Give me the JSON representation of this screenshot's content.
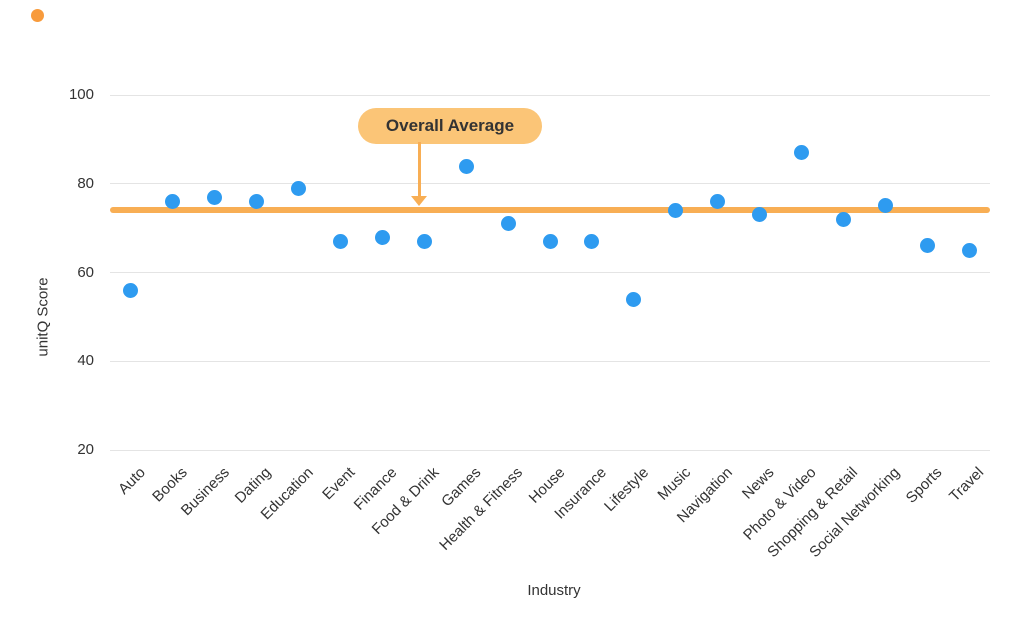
{
  "brand": {
    "dot_color": "#F89B3C"
  },
  "chart_data": {
    "type": "scatter",
    "title": "",
    "xlabel": "Industry",
    "ylabel": "unitQ Score",
    "categories": [
      "Auto",
      "Books",
      "Business",
      "Dating",
      "Education",
      "Event",
      "Finance",
      "Food & Drink",
      "Games",
      "Health & Fitness",
      "House",
      "Insurance",
      "Lifestyle",
      "Music",
      "Navigation",
      "News",
      "Photo & Video",
      "Shopping & Retail",
      "Social Networking",
      "Sports",
      "Travel"
    ],
    "values": [
      56,
      76,
      77,
      76,
      79,
      67,
      68,
      67,
      84,
      71,
      67,
      67,
      54,
      74,
      76,
      73,
      87,
      72,
      75,
      66,
      65
    ],
    "ylim": [
      20,
      100
    ],
    "yticks": [
      20,
      40,
      60,
      80,
      100
    ],
    "grid": true,
    "legend": "none",
    "overall_average": 74,
    "annotation": {
      "label": "Overall Average"
    },
    "colors": {
      "point": "#2E9BF0",
      "average_line": "#F8AE54",
      "annotation_bg": "#FBC577",
      "annotation_text": "#333333",
      "axis_text": "#333333",
      "gridline": "#E4E4E4"
    }
  }
}
